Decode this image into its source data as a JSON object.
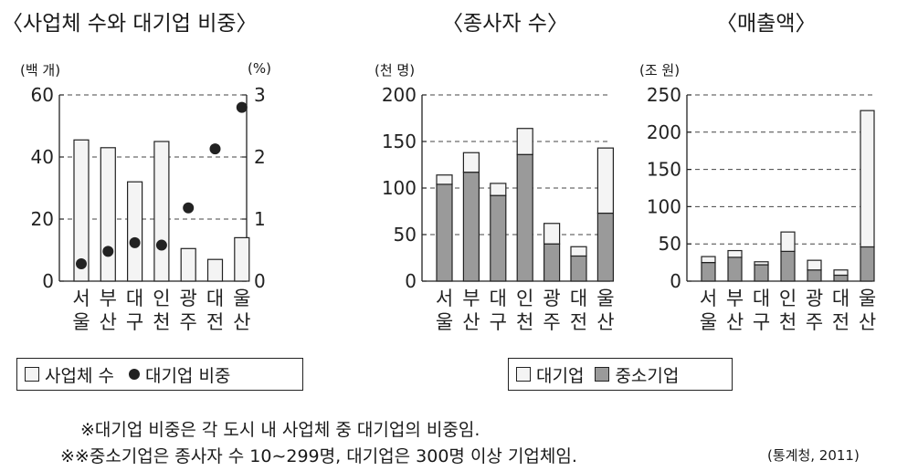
{
  "chart_data": [
    {
      "type": "bar",
      "title": "〈사업체 수와 대기업 비중〉",
      "ylabel": "(백 개)",
      "y2label": "(%)",
      "categories": [
        "서울",
        "부산",
        "대구",
        "인천",
        "광주",
        "대전",
        "울산"
      ],
      "ylim": [
        0,
        60
      ],
      "yticks": [
        0,
        20,
        40,
        60
      ],
      "y2lim": [
        0,
        3
      ],
      "y2ticks": [
        0,
        1,
        2,
        3
      ],
      "grid": "dashed",
      "series": [
        {
          "name": "사업체 수",
          "type": "bar",
          "axis": "left",
          "values": [
            45.5,
            43,
            32,
            45,
            10.5,
            7,
            14
          ]
        },
        {
          "name": "대기업 비중",
          "type": "scatter",
          "axis": "right",
          "values": [
            0.28,
            0.48,
            0.62,
            0.58,
            1.18,
            2.13,
            2.8
          ]
        }
      ],
      "legend": [
        "사업체 수",
        "대기업 비중"
      ]
    },
    {
      "type": "bar",
      "stacked": true,
      "title": "〈종사자 수〉",
      "ylabel": "(천 명)",
      "categories": [
        "서울",
        "부산",
        "대구",
        "인천",
        "광주",
        "대전",
        "울산"
      ],
      "ylim": [
        0,
        200
      ],
      "yticks": [
        0,
        50,
        100,
        150,
        200
      ],
      "grid": "dashed",
      "series": [
        {
          "name": "중소기업",
          "values": [
            104,
            117,
            92,
            136,
            40,
            27,
            73
          ]
        },
        {
          "name": "대기업",
          "values": [
            10,
            21,
            13,
            28,
            22,
            10,
            70
          ]
        }
      ]
    },
    {
      "type": "bar",
      "stacked": true,
      "title": "〈매출액〉",
      "ylabel": "(조 원)",
      "categories": [
        "서울",
        "부산",
        "대구",
        "인천",
        "광주",
        "대전",
        "울산"
      ],
      "ylim": [
        0,
        250
      ],
      "yticks": [
        0,
        50,
        100,
        150,
        200,
        250
      ],
      "grid": "dashed",
      "series": [
        {
          "name": "중소기업",
          "values": [
            25,
            32,
            22,
            40,
            15,
            8,
            46
          ]
        },
        {
          "name": "대기업",
          "values": [
            8,
            9,
            4,
            26,
            13,
            7,
            183
          ]
        }
      ],
      "legend": [
        "대기업",
        "중소기업"
      ]
    }
  ],
  "legend1": {
    "bar_label": "사업체 수",
    "dot_label": "대기업 비중"
  },
  "legend2": {
    "light_label": "대기업",
    "dark_label": "중소기업"
  },
  "notes": [
    "※대기업 비중은 각 도시 내 사업체 중 대기업의 비중임.",
    "※※중소기업은 종사자 수 10∼299명, 대기업은 300명 이상 기업체임."
  ],
  "source": "(통계청, 2011)",
  "colors": {
    "light_bar": "#f4f4f4",
    "dark_bar": "#9a9a9a",
    "dot": "#222222",
    "grid": "#444444"
  }
}
